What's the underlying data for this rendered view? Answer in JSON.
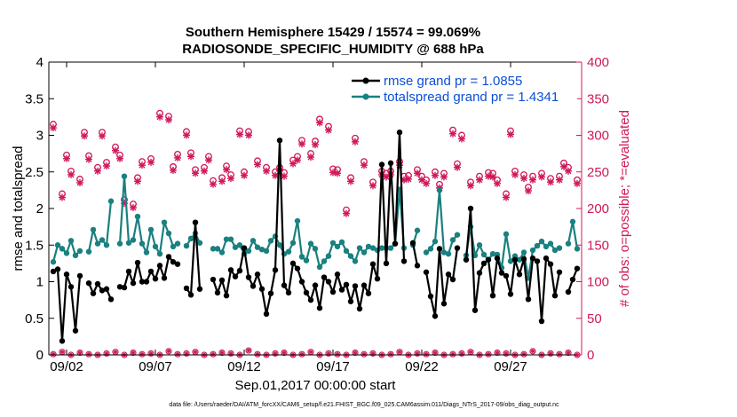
{
  "colors": {
    "rmse": "#000000",
    "spread": "#1a8080",
    "obs": "#d0185a",
    "legend_text": "#0b4fd6",
    "axis": "#000000"
  },
  "chart_data": {
    "type": "line",
    "title_line1": "Southern Hemisphere 15429 / 15574 = 99.069%",
    "title_line2": "RADIOSONDE_SPECIFIC_HUMIDITY @ 688 hPa",
    "xlabel": "Sep.01,2017 00:00:00 start",
    "ylabel_left": "rmse and totalspread",
    "ylabel_right": "# of obs: o=possible; *=evaluated",
    "footnote": "data file: /Users/raeder/DAI/ATM_forcXX/CAM6_setup/f.e21.FHIST_BGC.f09_025.CAM6assim.011/Diags_NTrS_2017-09/obs_diag_output.nc",
    "xlim": [
      1.0,
      31.0
    ],
    "ylim_left": [
      0,
      4
    ],
    "ylim_right": [
      0,
      400
    ],
    "x_ticks": [
      2,
      7,
      12,
      17,
      22,
      27
    ],
    "x_tick_labels": [
      "09/02",
      "09/07",
      "09/12",
      "09/17",
      "09/22",
      "09/27"
    ],
    "y_left_ticks": [
      0,
      0.5,
      1,
      1.5,
      2,
      2.5,
      3,
      3.5,
      4
    ],
    "y_left_tick_labels": [
      "0",
      "0.5",
      "1",
      "1.5",
      "2",
      "2.5",
      "3",
      "3.5",
      "4"
    ],
    "y_right_ticks": [
      0,
      50,
      100,
      150,
      200,
      250,
      300,
      350,
      400
    ],
    "y_right_tick_labels": [
      "0",
      "50",
      "100",
      "150",
      "200",
      "250",
      "300",
      "350",
      "400"
    ],
    "x_start": 1.25,
    "x_step": 0.25,
    "series": [
      {
        "name": "rmse grand pr = 1.0855",
        "axis": "left",
        "values": [
          1.14,
          1.17,
          0.19,
          1.1,
          0.93,
          0.33,
          1.08,
          null,
          0.98,
          0.84,
          0.97,
          0.88,
          0.9,
          0.76,
          null,
          0.93,
          0.92,
          1.14,
          0.98,
          1.26,
          1.0,
          1.0,
          1.14,
          1.04,
          1.22,
          1.05,
          1.34,
          1.27,
          1.24,
          null,
          0.91,
          0.82,
          1.81,
          0.9,
          null,
          null,
          1.03,
          0.85,
          1.02,
          0.81,
          1.16,
          1.07,
          1.15,
          1.46,
          1.06,
          0.94,
          1.1,
          0.9,
          0.56,
          0.84,
          1.16,
          2.93,
          0.95,
          0.85,
          1.25,
          1.18,
          1.0,
          0.85,
          0.75,
          0.95,
          0.64,
          1.06,
          1.0,
          0.86,
          1.1,
          0.89,
          0.96,
          0.73,
          0.94,
          0.63,
          0.95,
          0.84,
          1.24,
          1.04,
          2.6,
          1.25,
          2.62,
          1.52,
          3.04,
          1.28,
          null,
          1.53,
          1.22,
          null,
          1.13,
          0.8,
          0.53,
          1.45,
          0.7,
          1.1,
          1.03,
          1.46,
          null,
          1.3,
          2.0,
          0.61,
          1.12,
          1.25,
          1.3,
          0.81,
          1.32,
          1.12,
          1.08,
          0.83,
          1.3,
          1.1,
          1.31,
          0.76,
          1.32,
          1.28,
          0.46,
          1.32,
          1.24,
          0.81,
          1.13,
          null,
          0.86,
          1.03,
          1.18
        ]
      },
      {
        "name": "totalspread grand pr = 1.4341",
        "axis": "left",
        "values": [
          1.27,
          1.5,
          1.45,
          1.39,
          1.56,
          1.36,
          1.42,
          null,
          1.41,
          1.71,
          1.52,
          1.57,
          1.5,
          2.1,
          null,
          1.52,
          2.44,
          1.53,
          1.57,
          1.89,
          1.52,
          1.4,
          1.71,
          1.48,
          1.38,
          1.81,
          1.66,
          1.48,
          1.52,
          null,
          1.49,
          1.59,
          1.66,
          1.53,
          null,
          null,
          1.45,
          1.45,
          1.4,
          1.58,
          1.58,
          1.47,
          1.5,
          1.38,
          1.42,
          1.56,
          1.47,
          1.44,
          1.42,
          1.56,
          1.62,
          1.5,
          1.38,
          1.41,
          1.53,
          1.83,
          1.34,
          1.29,
          1.52,
          1.45,
          1.2,
          1.28,
          1.35,
          1.53,
          1.48,
          1.54,
          1.42,
          1.35,
          1.28,
          1.46,
          1.4,
          1.48,
          1.46,
          1.43,
          1.46,
          1.46,
          1.46,
          1.52,
          2.26,
          1.46,
          null,
          1.5,
          1.7,
          null,
          1.4,
          1.45,
          1.55,
          2.25,
          1.4,
          1.38,
          1.57,
          1.64,
          null,
          1.36,
          1.75,
          1.36,
          1.5,
          1.37,
          1.3,
          1.38,
          1.37,
          1.19,
          1.65,
          1.28,
          1.35,
          1.3,
          1.4,
          1.05,
          1.43,
          1.49,
          1.55,
          1.48,
          1.52,
          1.43,
          1.46,
          null,
          1.52,
          1.82,
          1.45
        ]
      },
      {
        "name": "possible obs",
        "axis": "right",
        "values": [
          315,
          220,
          251,
          240,
          272,
          256,
          263,
          284,
          212,
          206,
          264,
          268,
          330,
          326,
          274,
          305,
          253,
          256,
          238,
          242,
          246,
          306,
          305,
          265,
          256,
          250,
          249,
          266,
          293,
          275,
          322,
          312,
          253,
          198,
          296,
          264,
          236,
          251,
          251,
          264,
          245,
          253,
          239,
          250,
          248,
          307,
          300,
          236,
          244,
          249,
          239,
          220,
          251,
          246,
          244,
          248,
          241,
          244,
          256,
          239,
          273,
          304,
          242,
          257,
          271,
          250,
          256,
          292,
          242,
          248,
          244,
          261,
          248,
          229,
          262,
          304,
          276,
          271,
          244,
          306,
          273,
          258,
          254,
          233
        ]
      },
      {
        "name": "evaluated obs",
        "axis": "right",
        "values": [
          315,
          220,
          251,
          240,
          272,
          256,
          263,
          284,
          212,
          206,
          264,
          268,
          330,
          326,
          274,
          305,
          253,
          256,
          238,
          242,
          246,
          306,
          305,
          265,
          256,
          250,
          249,
          266,
          293,
          275,
          322,
          312,
          253,
          198,
          296,
          264,
          236,
          251,
          251,
          264,
          245,
          253,
          239,
          250,
          248,
          307,
          300,
          236,
          244,
          249,
          239,
          220,
          251,
          246,
          244,
          248,
          241,
          244,
          256,
          239,
          273,
          304,
          242,
          257,
          271,
          250,
          256,
          292,
          242,
          248,
          244,
          261,
          248,
          229,
          262,
          304,
          276,
          271,
          244,
          306,
          273,
          258,
          254,
          233
        ]
      }
    ],
    "obs_x": [
      1.25,
      1.75,
      2.25,
      2.75,
      3.25,
      3.75,
      4.25,
      4.75,
      5.25,
      5.75,
      6.25,
      6.75,
      7.25,
      7.75,
      8.25,
      8.75,
      9.25,
      9.75,
      10.25,
      10.75,
      11.25,
      11.75,
      12.25,
      12.75,
      13.25,
      13.75,
      14.25,
      14.75,
      15.25,
      15.75,
      16.25,
      16.75,
      17.25,
      17.75,
      18.25,
      18.75,
      19.25,
      19.75,
      20.25,
      20.75,
      21.25,
      21.75,
      22.25,
      22.75,
      23.25,
      23.75,
      24.25,
      24.75,
      25.25,
      25.75,
      26.25,
      26.75,
      27.25,
      27.75,
      28.25,
      28.75,
      29.25,
      29.75,
      30.25,
      30.75,
      2.0,
      4.0,
      6.0,
      8.0,
      10.0,
      12.0,
      14.0,
      16.0,
      18.0,
      20.0,
      22.0,
      24.0,
      26.0,
      28.0,
      30.0,
      3.0,
      9.0,
      15.0,
      21.0,
      27.0,
      5.0,
      11.0,
      17.0,
      23.0
    ],
    "zero_obs_x": [
      1.25,
      1.75,
      2.25,
      2.75,
      3.25,
      3.75,
      4.25,
      4.75,
      5.25,
      5.75,
      6.25,
      6.75,
      7.25,
      7.75,
      8.25,
      8.75,
      9.25,
      9.75,
      10.25,
      10.75,
      11.25,
      11.75,
      12.25,
      12.75,
      13.25,
      13.75,
      14.25,
      14.75,
      15.25,
      15.75,
      16.25,
      16.75,
      17.25,
      17.75,
      18.25,
      18.75,
      19.25,
      19.75,
      20.25,
      20.75,
      21.25,
      21.75,
      22.25,
      22.75,
      23.25,
      23.75,
      24.25,
      24.75,
      25.25,
      25.75,
      26.25,
      26.75,
      27.25,
      27.75,
      28.25,
      28.75,
      29.25,
      29.75,
      30.25,
      30.75
    ],
    "zero_obs_values": [
      1,
      4,
      0,
      3,
      1,
      0,
      2,
      4,
      0,
      3,
      1,
      2,
      0,
      5,
      1,
      2,
      4,
      0,
      1,
      3,
      2,
      0,
      6,
      1,
      0,
      2,
      3,
      0,
      1,
      4,
      0,
      2,
      1,
      0,
      3,
      1,
      2,
      0,
      1,
      4,
      0,
      2,
      1,
      3,
      0,
      1,
      2,
      4,
      0,
      1,
      3,
      2,
      0,
      1,
      5,
      0,
      2,
      1,
      3,
      0
    ]
  }
}
